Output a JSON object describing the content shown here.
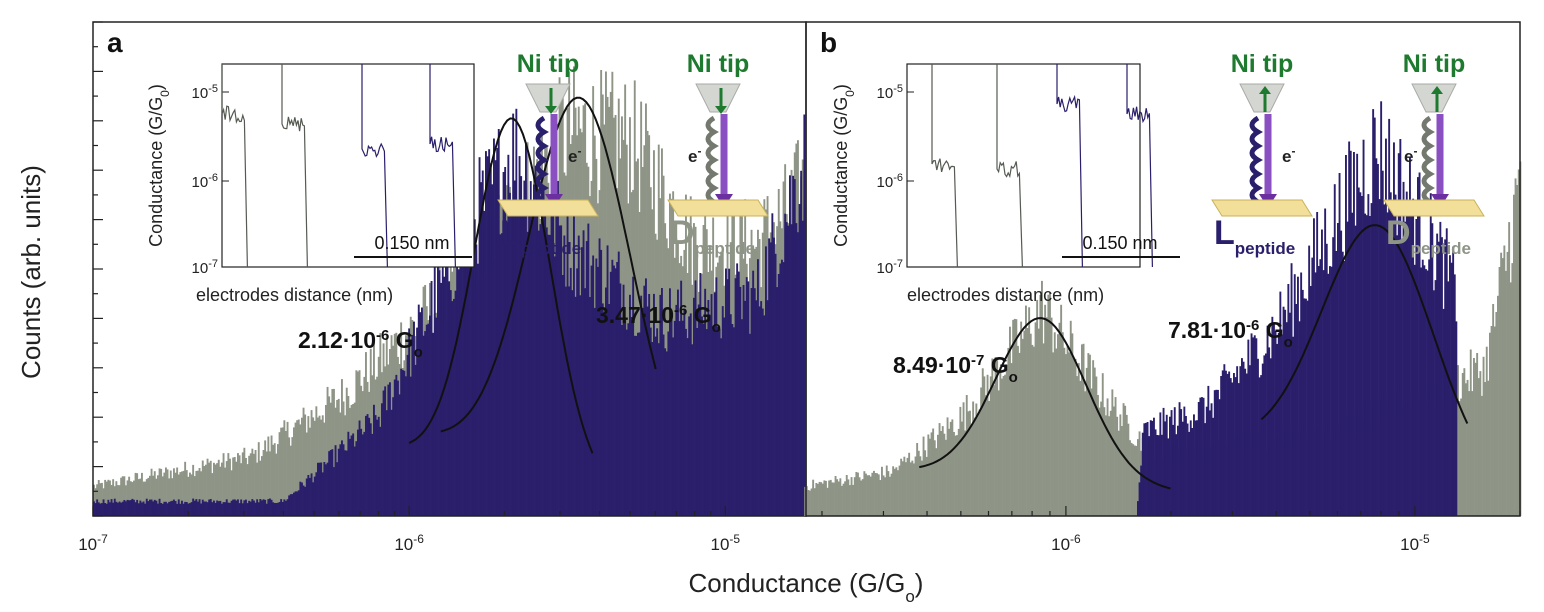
{
  "figure": {
    "ylabel": "Counts (arb. units)",
    "xlabel_main": "Conductance (G/G",
    "xlabel_sub": "o",
    "xlabel_close": ")"
  },
  "colors": {
    "L": "#2a1f6b",
    "D": "#8e9486",
    "tip_label": "#1e7a2e",
    "fit": "#111111",
    "arrow": "#8a4fc0"
  },
  "chart_data": [
    {
      "panel": "a",
      "type": "bar",
      "xscale": "log",
      "xlim": [
        1e-07,
        1.8e-05
      ],
      "ylim": [
        0,
        1
      ],
      "x_ticks": [
        {
          "value": 1e-07,
          "base": "10",
          "exp": "-7"
        },
        {
          "value": 1e-06,
          "base": "10",
          "exp": "-6"
        },
        {
          "value": 1e-05,
          "base": "10",
          "exp": "-5"
        }
      ],
      "series": [
        {
          "name": "D peptide",
          "color": "#8e9486",
          "peak_log": -5.46,
          "profile": [
            [
              -7,
              0.06
            ],
            [
              -6.5,
              0.12
            ],
            [
              -6.2,
              0.25
            ],
            [
              -5.8,
              0.5
            ],
            [
              -5.5,
              0.78
            ],
            [
              -5.3,
              0.76
            ],
            [
              -5.1,
              0.55
            ],
            [
              -4.9,
              0.55
            ],
            [
              -4.8,
              0.62
            ],
            [
              -4.75,
              0.68
            ]
          ]
        },
        {
          "name": "L peptide",
          "color": "#2a1f6b",
          "peak_log": -5.67,
          "profile": [
            [
              -7,
              0.03
            ],
            [
              -6.4,
              0.03
            ],
            [
              -6.1,
              0.2
            ],
            [
              -5.8,
              0.6
            ],
            [
              -5.67,
              0.74
            ],
            [
              -5.5,
              0.55
            ],
            [
              -5.2,
              0.4
            ],
            [
              -4.9,
              0.45
            ],
            [
              -4.75,
              0.72
            ]
          ]
        }
      ],
      "fits": [
        {
          "label_mant": "2.12·10",
          "label_exp": "-6",
          "label_unit": "G",
          "label_sub": "o",
          "center": 2.12e-06,
          "sigma_log": 0.12,
          "amplitude": 0.72,
          "baseline": 0.2,
          "range_log": [
            -6.0,
            -5.42
          ]
        },
        {
          "label_mant": "3.47·10",
          "label_exp": "-6",
          "label_unit": "G",
          "label_sub": "o",
          "center": 3.47e-06,
          "sigma_log": 0.16,
          "amplitude": 0.76,
          "baseline": 0.26,
          "range_log": [
            -5.9,
            -5.22
          ]
        }
      ],
      "inset": {
        "ylabel": "Conductance (G/G",
        "ylabel_sub": "0",
        "ylabel_close": ")",
        "xlabel": "electrodes distance (nm)",
        "scalebar_label": "0.150 nm",
        "y_ticks": [
          {
            "base": "10",
            "exp": "-5"
          },
          {
            "base": "10",
            "exp": "-6"
          },
          {
            "base": "10",
            "exp": "-7"
          }
        ],
        "traces": [
          "D",
          "D",
          "L",
          "L"
        ]
      },
      "schemes": [
        {
          "tip_label": "Ni tip",
          "arrow": "down",
          "enantiomer": "L",
          "name_big": "L",
          "name_small": "peptide",
          "electron": "e",
          "electron_sup": "-"
        },
        {
          "tip_label": "Ni tip",
          "arrow": "down",
          "enantiomer": "D",
          "name_big": "D",
          "name_small": "peptide",
          "electron": "e",
          "electron_sup": "-"
        }
      ]
    },
    {
      "panel": "b",
      "type": "bar",
      "xscale": "log",
      "xlim": [
        1.8e-07,
        2e-05
      ],
      "ylim": [
        0,
        1
      ],
      "x_ticks": [
        {
          "value": 1e-06,
          "base": "10",
          "exp": "-6"
        },
        {
          "value": 1e-05,
          "base": "10",
          "exp": "-5"
        }
      ],
      "series": [
        {
          "name": "D peptide",
          "color": "#8e9486",
          "peak_log": -6.07,
          "profile": [
            [
              -6.75,
              0.06
            ],
            [
              -6.5,
              0.09
            ],
            [
              -6.3,
              0.2
            ],
            [
              -6.07,
              0.42
            ],
            [
              -5.9,
              0.25
            ],
            [
              -5.75,
              0.12
            ],
            [
              -5.5,
              0.15
            ],
            [
              -5.2,
              0.18
            ],
            [
              -4.95,
              0.25
            ],
            [
              -4.8,
              0.3
            ],
            [
              -4.7,
              0.68
            ]
          ]
        },
        {
          "name": "L peptide",
          "color": "#2a1f6b",
          "peak_log": -5.11,
          "profile": [
            [
              -6.75,
              0
            ],
            [
              -5.8,
              0
            ],
            [
              -5.78,
              0.17
            ],
            [
              -5.6,
              0.22
            ],
            [
              -5.4,
              0.38
            ],
            [
              -5.11,
              0.75
            ],
            [
              -4.95,
              0.55
            ],
            [
              -4.88,
              0.45
            ]
          ]
        }
      ],
      "fits": [
        {
          "label_mant": "8.49·10",
          "label_exp": "-7",
          "label_unit": "G",
          "label_sub": "o",
          "center": 8.49e-07,
          "sigma_log": 0.13,
          "amplitude": 0.33,
          "baseline": 0.1,
          "range_log": [
            -6.42,
            -5.7
          ]
        },
        {
          "label_mant": "7.81·10",
          "label_exp": "-6",
          "label_unit": "G",
          "label_sub": "o",
          "center": 7.81e-06,
          "sigma_log": 0.16,
          "amplitude": 0.5,
          "baseline": 0.22,
          "range_log": [
            -5.44,
            -4.85
          ]
        }
      ],
      "inset": {
        "ylabel": "Conductance (G/G",
        "ylabel_sub": "0",
        "ylabel_close": ")",
        "xlabel": "electrodes distance (nm)",
        "scalebar_label": "0.150 nm",
        "y_ticks": [
          {
            "base": "10",
            "exp": "-5"
          },
          {
            "base": "10",
            "exp": "-6"
          },
          {
            "base": "10",
            "exp": "-7"
          }
        ],
        "traces": [
          "D",
          "D",
          "L",
          "L"
        ]
      },
      "schemes": [
        {
          "tip_label": "Ni tip",
          "arrow": "up",
          "enantiomer": "L",
          "name_big": "L",
          "name_small": "peptide",
          "electron": "e",
          "electron_sup": "-"
        },
        {
          "tip_label": "Ni tip",
          "arrow": "up",
          "enantiomer": "D",
          "name_big": "D",
          "name_small": "peptide",
          "electron": "e",
          "electron_sup": "-"
        }
      ]
    }
  ]
}
